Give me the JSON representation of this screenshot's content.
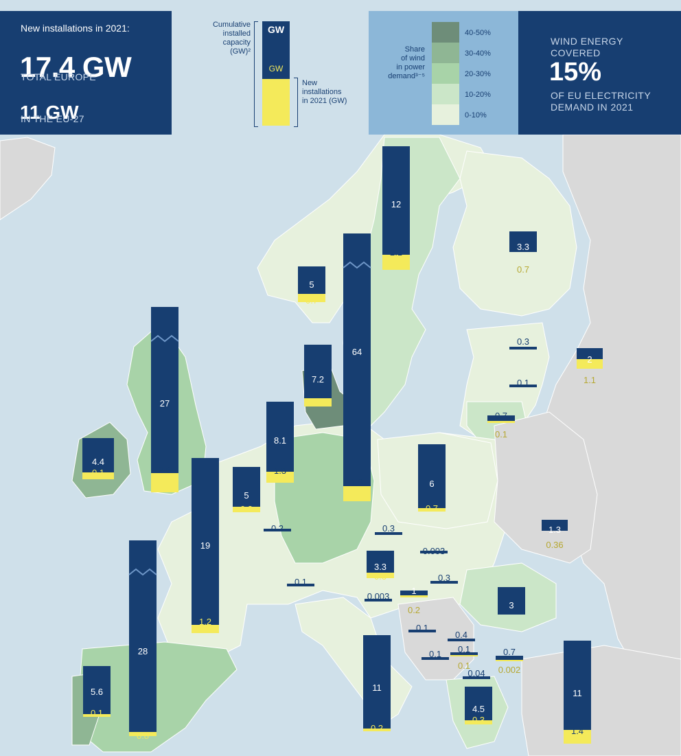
{
  "summary": {
    "header": "New installations in 2021:",
    "total_value": "17.4 GW",
    "total_label": "TOTAL EUROPE",
    "eu_value": "11 GW",
    "eu_label": "IN THE EU-27"
  },
  "bar_legend": {
    "cumulative_lines": [
      "Cumulative",
      "installed",
      "capacity",
      "(GW)²"
    ],
    "gw_top": "GW",
    "gw_bottom": "GW",
    "new_lines": [
      "New",
      "installations",
      "in 2021 (GW)"
    ]
  },
  "share_legend": {
    "title_lines": [
      "Share",
      "of wind",
      "in power",
      "demand³⁻⁵"
    ],
    "bands": [
      {
        "label": "40-50%",
        "color": "#6e8d79"
      },
      {
        "label": "30-40%",
        "color": "#8fb694"
      },
      {
        "label": "20-30%",
        "color": "#a8d3a8"
      },
      {
        "label": "10-20%",
        "color": "#cbe6c8"
      },
      {
        "label": "0-10%",
        "color": "#e7f1dd"
      }
    ]
  },
  "covered": {
    "line1": "WIND ENERGY",
    "line2": "COVERED",
    "value": "15%",
    "line3": "OF EU ELECTRICITY",
    "line4": "DEMAND IN 2021"
  },
  "colors": {
    "navy": "#173e71",
    "yellow": "#f4ea5a",
    "sea": "#cfe0ea",
    "non_eu_land": "#d9d9d9"
  },
  "countries": [
    {
      "cum": "12",
      "new": "2.1",
      "break": false
    },
    {
      "cum": "3.3",
      "new": "0.7",
      "break": false
    },
    {
      "cum": "5",
      "new": "0.7",
      "break": false
    },
    {
      "cum": "64",
      "new": "1.9",
      "break": true
    },
    {
      "cum": "27",
      "new": "2.6",
      "break": true
    },
    {
      "cum": "7.2",
      "new": "0.8",
      "break": false
    },
    {
      "cum": "0.3",
      "new": "",
      "break": false
    },
    {
      "cum": "2",
      "new": "1.1",
      "break": false
    },
    {
      "cum": "0.1",
      "new": "",
      "break": false
    },
    {
      "cum": "0.7",
      "new": "0.1",
      "break": false
    },
    {
      "cum": "4.4",
      "new": "0.1",
      "break": false
    },
    {
      "cum": "8.1",
      "new": "1.3",
      "break": false
    },
    {
      "cum": "5",
      "new": "0.3",
      "break": false
    },
    {
      "cum": "6",
      "new": "0.7",
      "break": false
    },
    {
      "cum": "19",
      "new": "1.2",
      "break": false
    },
    {
      "cum": "0.2",
      "new": "",
      "break": false
    },
    {
      "cum": "0.3",
      "new": "",
      "break": false
    },
    {
      "cum": "1.3",
      "new": "0.36",
      "break": false
    },
    {
      "cum": "0.003",
      "new": "",
      "break": false
    },
    {
      "cum": "3.3",
      "new": "0.3",
      "break": false
    },
    {
      "cum": "0.1",
      "new": "",
      "break": false
    },
    {
      "cum": "0.3",
      "new": "",
      "break": false
    },
    {
      "cum": "0.003",
      "new": "",
      "break": false
    },
    {
      "cum": "1",
      "new": "0.2",
      "break": false
    },
    {
      "cum": "3",
      "new": "",
      "break": false
    },
    {
      "cum": "28",
      "new": "0.8",
      "break": true
    },
    {
      "cum": "0.1",
      "new": "",
      "break": false
    },
    {
      "cum": "0.4",
      "new": "",
      "break": false
    },
    {
      "cum": "0.1",
      "new": "",
      "break": false
    },
    {
      "cum": "0.1",
      "new": "0.1",
      "break": false
    },
    {
      "cum": "0.7",
      "new": "0.002",
      "break": false
    },
    {
      "cum": "0.04",
      "new": "",
      "break": false
    },
    {
      "cum": "5.6",
      "new": "0.1",
      "break": false
    },
    {
      "cum": "11",
      "new": "0.2",
      "break": false
    },
    {
      "cum": "4.5",
      "new": "0.3",
      "break": false
    },
    {
      "cum": "11",
      "new": "1.4",
      "break": false
    }
  ]
}
